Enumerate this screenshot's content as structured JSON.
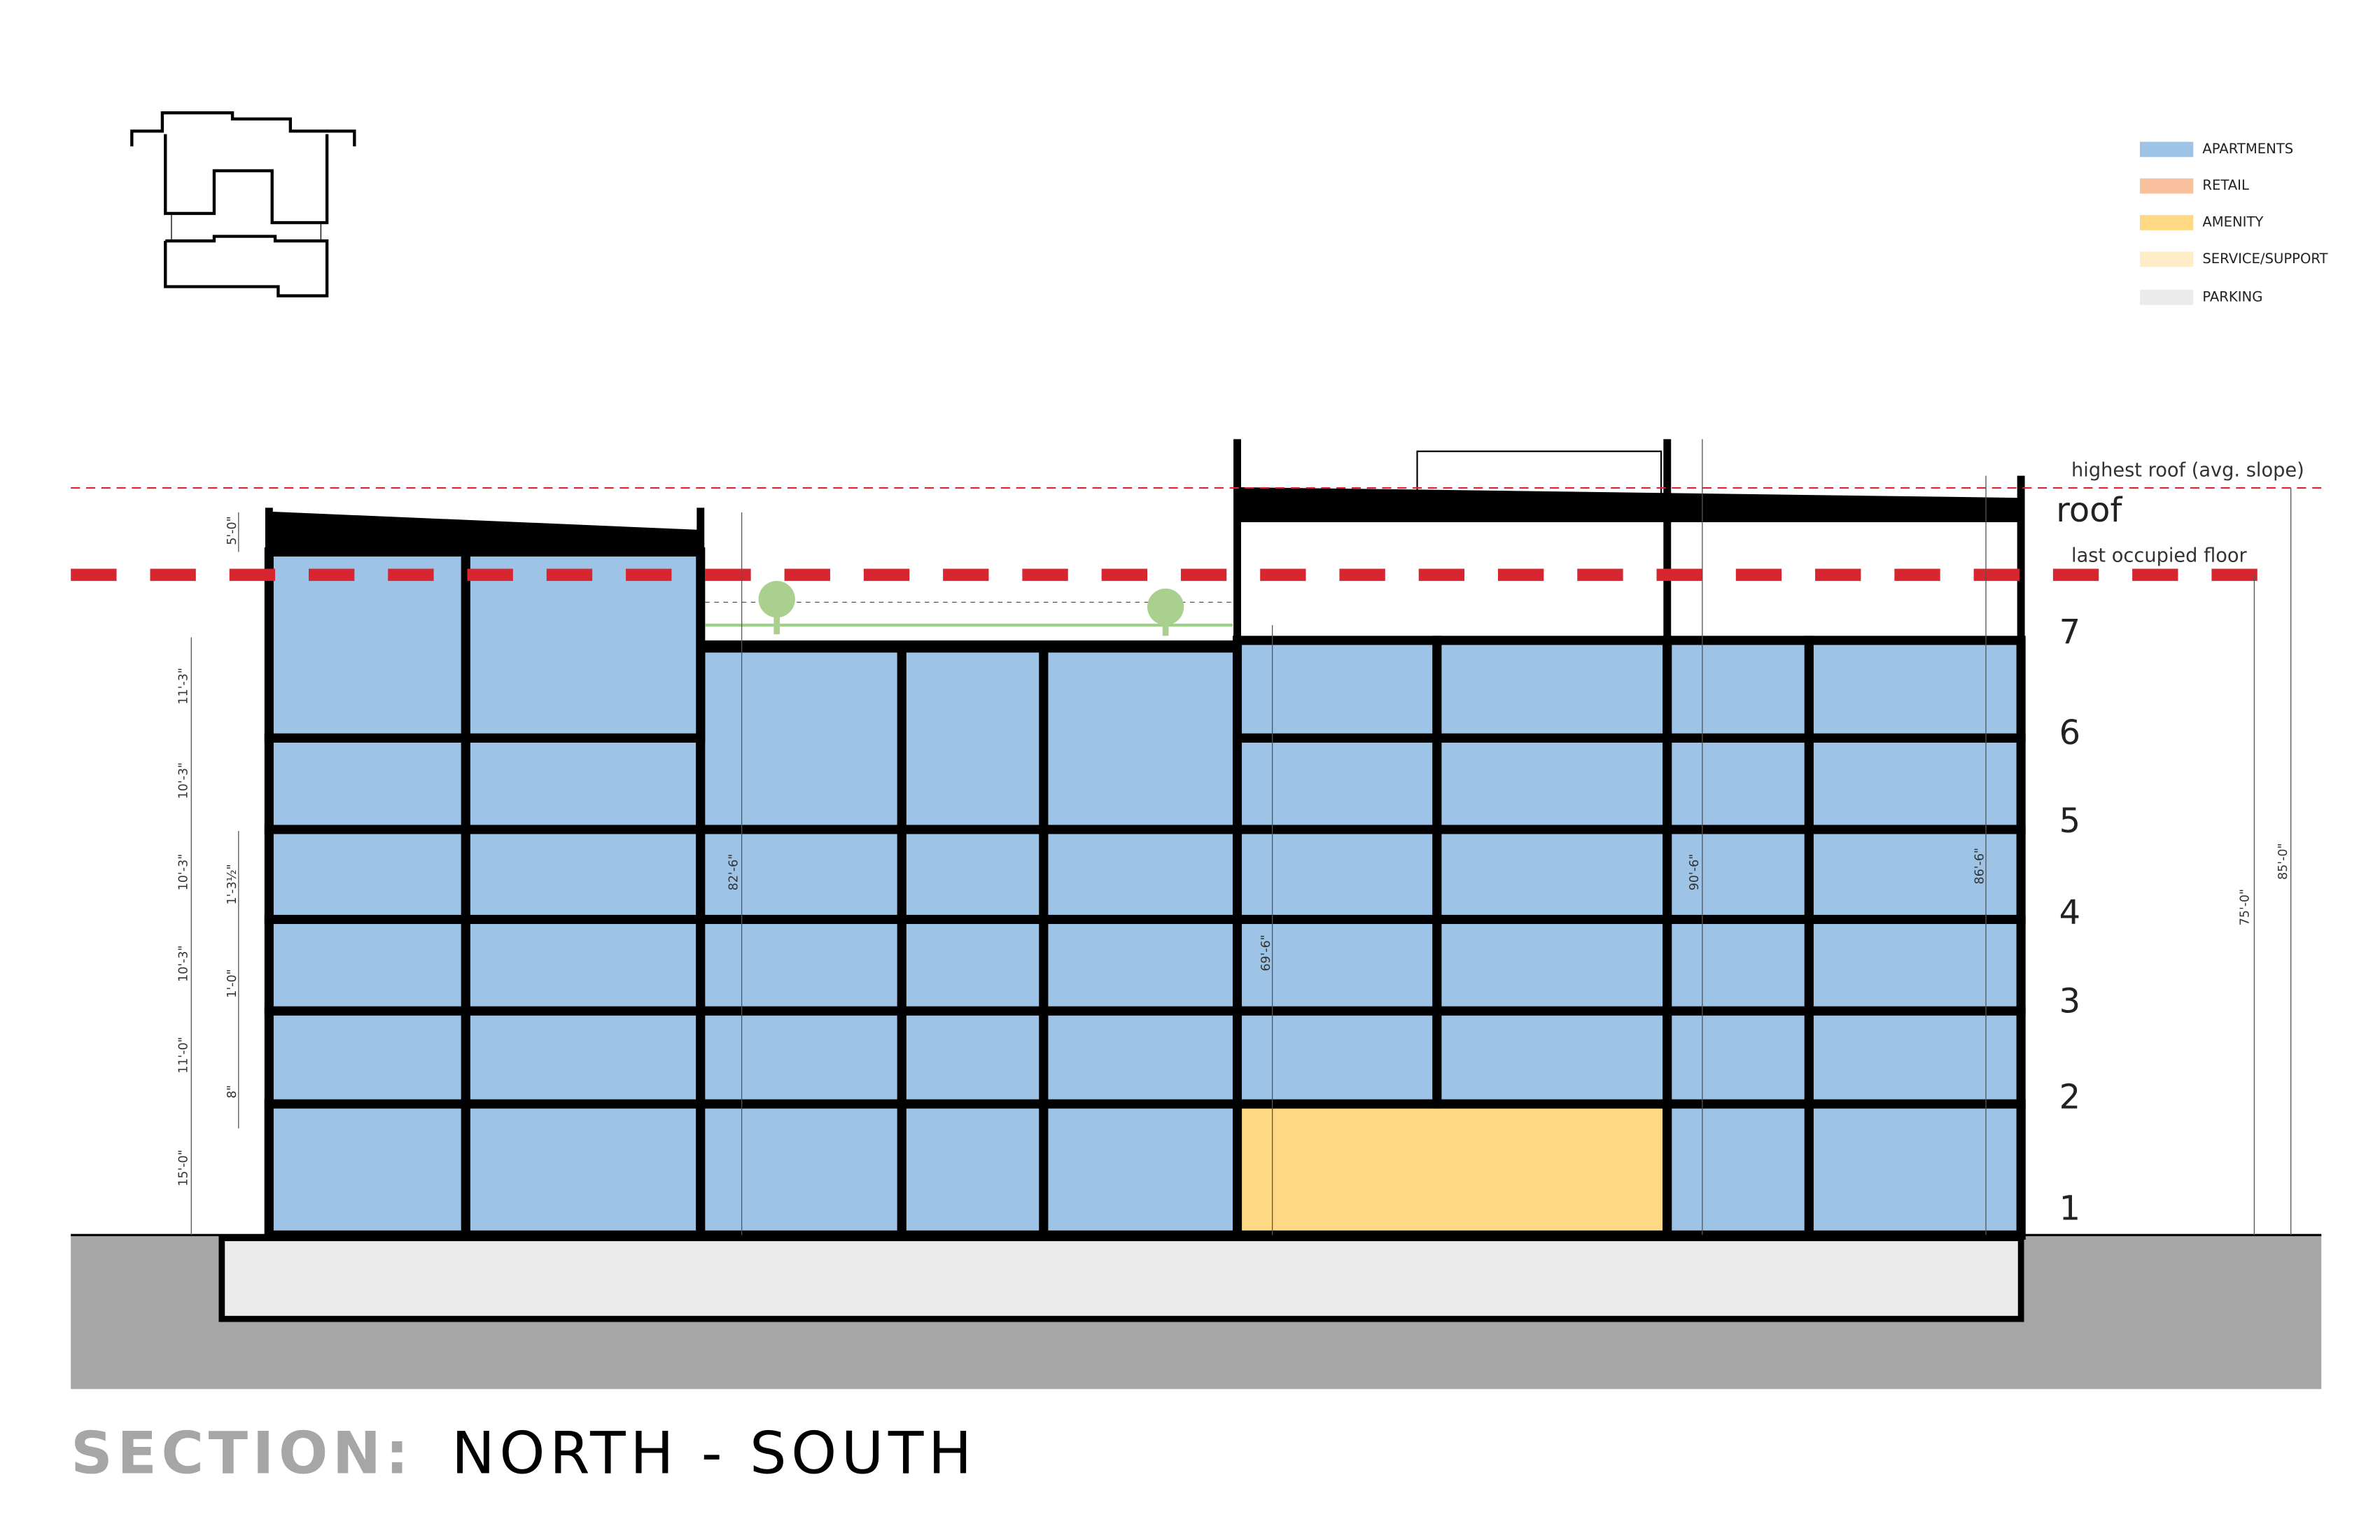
{
  "title": {
    "prefix": "SECTION:",
    "main": "NORTH - SOUTH"
  },
  "legend": [
    {
      "label": "APARTMENTS",
      "color": "#9dc3e6"
    },
    {
      "label": "RETAIL",
      "color": "#f8c09c"
    },
    {
      "label": "AMENITY",
      "color": "#ffd885"
    },
    {
      "label": "SERVICE/SUPPORT",
      "color": "#ffedc8"
    },
    {
      "label": "PARKING",
      "color": "#ebebeb"
    }
  ],
  "reference_lines": {
    "highest": "highest roof (avg. slope)",
    "last": "last occupied floor"
  },
  "levels": {
    "roof": "roof",
    "floors": [
      "1",
      "2",
      "3",
      "4",
      "5",
      "6",
      "7"
    ]
  },
  "dimensions": {
    "left": [
      "5'-0\"",
      "11'-3\"",
      "10'-3\"",
      "10'-3\"",
      "10'-3\"",
      "11'-0\"",
      "15'-0\""
    ],
    "inner": [
      "1'-3½\"",
      "1'-0\"",
      "8\""
    ],
    "heights": [
      "82'-6\"",
      "69'-6\"",
      "90'-6\"",
      "86'-6\"",
      "75'-0\"",
      "85'-0\""
    ]
  }
}
